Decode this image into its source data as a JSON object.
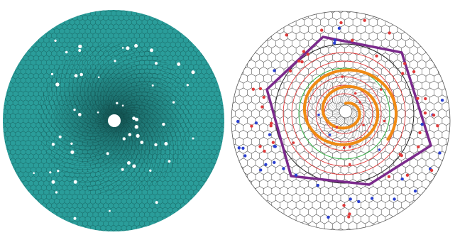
{
  "panels": [
    {
      "name": "atomistic-lattice",
      "lattice_color": "#2a9d9a",
      "lattice_edge_color": "#1b6f6c",
      "background": "#ffffff",
      "shape": "disk with central hole"
    },
    {
      "name": "hexagonal-cell-map",
      "cell_stroke": "#444444",
      "background": "#ffffff",
      "polygon_color": "#7b2a8c",
      "spiral_color": "#f08a14",
      "circle_colors": [
        "#222222",
        "#e03a3a",
        "#3fb34f"
      ],
      "defect_colors": [
        "#e03a3a",
        "#2a3fcf"
      ]
    }
  ]
}
